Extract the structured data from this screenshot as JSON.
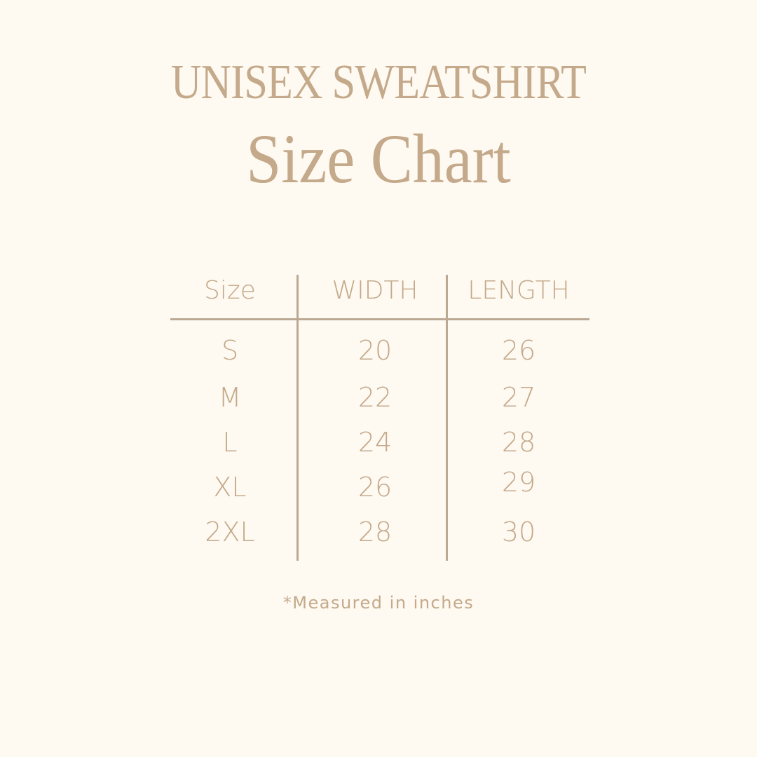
{
  "title": "UNISEX SWEATSHIRT",
  "subtitle": "Size Chart",
  "colors": {
    "background": "#fef9f1",
    "text": "#c4a98a",
    "lines": "#bba993"
  },
  "table": {
    "headers": [
      "Size",
      "WIDTH",
      "LENGTH"
    ],
    "rows": [
      [
        "S",
        "20",
        "26"
      ],
      [
        "M",
        "22",
        "27"
      ],
      [
        "L",
        "24",
        "28"
      ],
      [
        "XL",
        "26",
        "29"
      ],
      [
        "2XL",
        "28",
        "30"
      ]
    ]
  },
  "footnote": "*Measured in inches"
}
